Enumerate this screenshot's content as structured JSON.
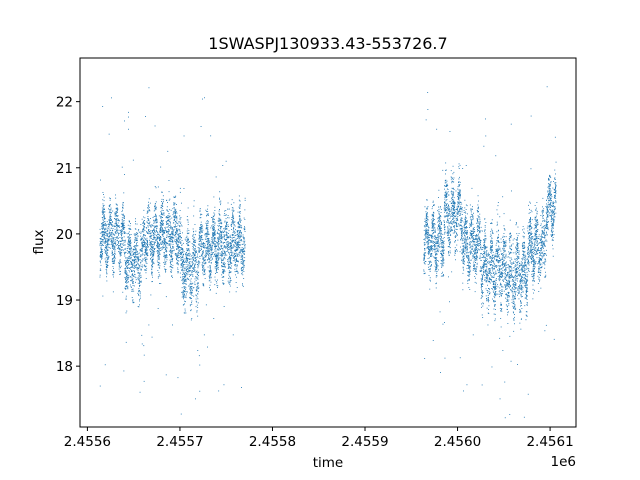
{
  "chart_data": {
    "type": "scatter",
    "title": "1SWASPJ130933.43-553726.7",
    "xlabel": "time",
    "ylabel": "flux",
    "x_offset_label": "1e6",
    "xlim": [
      2455592,
      2456128
    ],
    "ylim": [
      17.08,
      22.66
    ],
    "x_ticks": [
      2455600,
      2455700,
      2455800,
      2455900,
      2456000,
      2456100
    ],
    "x_tick_labels": [
      "2.4556",
      "2.4557",
      "2.4558",
      "2.4559",
      "2.4560",
      "2.4561"
    ],
    "y_ticks": [
      18,
      19,
      20,
      21,
      22
    ],
    "y_tick_labels": [
      "18",
      "19",
      "20",
      "21",
      "22"
    ],
    "grid": false,
    "point_color": "#1f77b4",
    "series": [
      {
        "values_summary": "dense clusters of observations",
        "segments": [
          {
            "x_start": 2455613,
            "x_end": 2455640,
            "y_center": 19.95,
            "y_spread": 0.35
          },
          {
            "x_start": 2455640,
            "x_end": 2455660,
            "y_center": 19.6,
            "y_spread": 0.4
          },
          {
            "x_start": 2455660,
            "x_end": 2455680,
            "y_center": 19.95,
            "y_spread": 0.35
          },
          {
            "x_start": 2455680,
            "x_end": 2455700,
            "y_center": 20.0,
            "y_spread": 0.4
          },
          {
            "x_start": 2455700,
            "x_end": 2455720,
            "y_center": 19.5,
            "y_spread": 0.45
          },
          {
            "x_start": 2455720,
            "x_end": 2455740,
            "y_center": 19.8,
            "y_spread": 0.35
          },
          {
            "x_start": 2455740,
            "x_end": 2455770,
            "y_center": 19.85,
            "y_spread": 0.4
          },
          {
            "x_start": 2455963,
            "x_end": 2455985,
            "y_center": 19.9,
            "y_spread": 0.35
          },
          {
            "x_start": 2455985,
            "x_end": 2456005,
            "y_center": 20.3,
            "y_spread": 0.4
          },
          {
            "x_start": 2456005,
            "x_end": 2456025,
            "y_center": 19.85,
            "y_spread": 0.4
          },
          {
            "x_start": 2456025,
            "x_end": 2456050,
            "y_center": 19.5,
            "y_spread": 0.45
          },
          {
            "x_start": 2456050,
            "x_end": 2456075,
            "y_center": 19.4,
            "y_spread": 0.45
          },
          {
            "x_start": 2456075,
            "x_end": 2456095,
            "y_center": 19.8,
            "y_spread": 0.4
          },
          {
            "x_start": 2456095,
            "x_end": 2456106,
            "y_center": 20.4,
            "y_spread": 0.35
          }
        ]
      }
    ]
  }
}
